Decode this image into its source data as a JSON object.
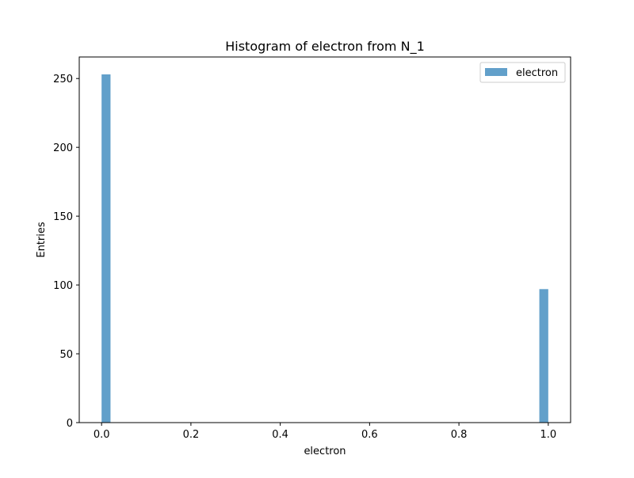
{
  "chart_data": {
    "type": "bar",
    "title": "Histogram of electron from N_1",
    "xlabel": "electron",
    "ylabel": "Entries",
    "xlim": [
      -0.05,
      1.05
    ],
    "ylim": [
      0,
      265.65
    ],
    "xticks": [
      0.0,
      0.2,
      0.4,
      0.6,
      0.8,
      1.0
    ],
    "xtick_labels": [
      "0.0",
      "0.2",
      "0.4",
      "0.6",
      "0.8",
      "1.0"
    ],
    "yticks": [
      0,
      50,
      100,
      150,
      200,
      250
    ],
    "ytick_labels": [
      "0",
      "50",
      "100",
      "150",
      "200",
      "250"
    ],
    "grid": false,
    "legend_position": "top-right",
    "color": "#1f77b4",
    "series": [
      {
        "name": "electron",
        "bins": [
          {
            "x0": 0.0,
            "x1": 0.02,
            "count": 253
          },
          {
            "x0": 0.98,
            "x1": 1.0,
            "count": 97
          }
        ]
      }
    ]
  }
}
